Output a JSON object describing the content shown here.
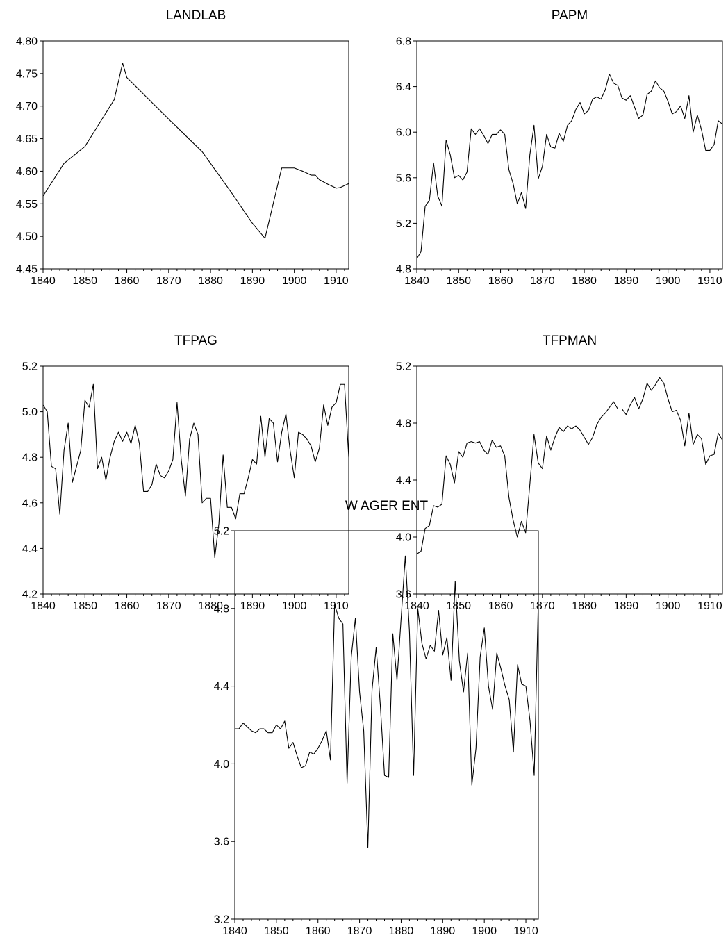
{
  "chart_data": [
    {
      "type": "line",
      "title": "LANDLAB",
      "xlim": [
        1840,
        1913
      ],
      "ylim": [
        4.45,
        4.8
      ],
      "x_ticks": [
        "1840",
        "1850",
        "1860",
        "1870",
        "1880",
        "1890",
        "1900",
        "1910"
      ],
      "y_ticks": [
        "4.45",
        "4.50",
        "4.55",
        "4.60",
        "4.65",
        "4.70",
        "4.75",
        "4.80"
      ],
      "grid": false,
      "series": [
        {
          "x": [
            1840,
            1845,
            1850,
            1857,
            1859,
            1860,
            1865,
            1870,
            1878,
            1885,
            1890,
            1893,
            1897,
            1899,
            1900,
            1902,
            1904,
            1905,
            1906,
            1908,
            1910,
            1911,
            1913
          ],
          "values": [
            4.562,
            4.612,
            4.638,
            4.71,
            4.766,
            4.744,
            4.712,
            4.68,
            4.63,
            4.567,
            4.52,
            4.497,
            4.605,
            4.605,
            4.605,
            4.6,
            4.594,
            4.594,
            4.587,
            4.58,
            4.574,
            4.575,
            4.581
          ]
        }
      ]
    },
    {
      "type": "line",
      "title": "PAPM",
      "xlim": [
        1840,
        1913
      ],
      "ylim": [
        4.8,
        6.8
      ],
      "x_ticks": [
        "1840",
        "1850",
        "1860",
        "1870",
        "1880",
        "1890",
        "1900",
        "1910"
      ],
      "y_ticks": [
        "4.8",
        "5.2",
        "5.6",
        "6.0",
        "6.4",
        "6.8"
      ],
      "grid": false,
      "series": [
        {
          "x_start": 1840,
          "x_step": 1,
          "values": [
            4.89,
            4.95,
            5.35,
            5.4,
            5.73,
            5.44,
            5.35,
            5.93,
            5.8,
            5.6,
            5.62,
            5.58,
            5.65,
            6.03,
            5.98,
            6.03,
            5.97,
            5.9,
            5.98,
            5.98,
            6.02,
            5.98,
            5.67,
            5.55,
            5.37,
            5.47,
            5.33,
            5.8,
            6.06,
            5.59,
            5.7,
            5.98,
            5.87,
            5.86,
            5.99,
            5.92,
            6.06,
            6.1,
            6.2,
            6.26,
            6.16,
            6.19,
            6.29,
            6.31,
            6.29,
            6.37,
            6.51,
            6.43,
            6.41,
            6.3,
            6.28,
            6.32,
            6.22,
            6.12,
            6.15,
            6.33,
            6.36,
            6.45,
            6.39,
            6.36,
            6.27,
            6.16,
            6.18,
            6.23,
            6.12,
            6.32,
            6.0,
            6.15,
            6.02,
            5.84,
            5.84,
            5.89,
            6.1,
            6.07
          ]
        }
      ]
    },
    {
      "type": "line",
      "title": "TFPAG",
      "xlim": [
        1840,
        1913
      ],
      "ylim": [
        4.2,
        5.2
      ],
      "x_ticks": [
        "1840",
        "1850",
        "1860",
        "1870",
        "1880",
        "1890",
        "1900",
        "1910"
      ],
      "y_ticks": [
        "4.2",
        "4.4",
        "4.6",
        "4.8",
        "5.0",
        "5.2"
      ],
      "grid": false,
      "series": [
        {
          "x_start": 1840,
          "x_step": 1,
          "values": [
            5.03,
            5.0,
            4.76,
            4.75,
            4.55,
            4.83,
            4.95,
            4.69,
            4.76,
            4.83,
            5.05,
            5.02,
            5.12,
            4.75,
            4.8,
            4.7,
            4.8,
            4.87,
            4.91,
            4.87,
            4.91,
            4.86,
            4.94,
            4.86,
            4.65,
            4.65,
            4.68,
            4.77,
            4.72,
            4.71,
            4.74,
            4.79,
            5.04,
            4.79,
            4.63,
            4.88,
            4.95,
            4.9,
            4.6,
            4.62,
            4.62,
            4.36,
            4.51,
            4.81,
            4.58,
            4.58,
            4.53,
            4.64,
            4.64,
            4.71,
            4.79,
            4.77,
            4.98,
            4.8,
            4.97,
            4.95,
            4.78,
            4.91,
            4.99,
            4.83,
            4.71,
            4.91,
            4.9,
            4.88,
            4.85,
            4.78,
            4.84,
            5.03,
            4.94,
            5.02,
            5.04,
            5.12,
            5.12,
            4.8
          ]
        }
      ]
    },
    {
      "type": "line",
      "title": "TFPMAN",
      "xlim": [
        1840,
        1913
      ],
      "ylim": [
        3.6,
        5.2
      ],
      "x_ticks": [
        "1840",
        "1850",
        "1860",
        "1870",
        "1880",
        "1890",
        "1900",
        "1910"
      ],
      "y_ticks": [
        "3.6",
        "4.0",
        "4.4",
        "4.8",
        "5.2"
      ],
      "grid": false,
      "series": [
        {
          "x_start": 1840,
          "x_step": 1,
          "values": [
            3.88,
            3.9,
            4.06,
            4.08,
            4.22,
            4.21,
            4.23,
            4.57,
            4.51,
            4.38,
            4.6,
            4.56,
            4.66,
            4.67,
            4.66,
            4.67,
            4.61,
            4.58,
            4.68,
            4.63,
            4.64,
            4.57,
            4.28,
            4.12,
            4.0,
            4.11,
            4.03,
            4.37,
            4.72,
            4.52,
            4.48,
            4.71,
            4.61,
            4.7,
            4.77,
            4.74,
            4.78,
            4.76,
            4.78,
            4.75,
            4.7,
            4.65,
            4.7,
            4.79,
            4.84,
            4.87,
            4.91,
            4.95,
            4.9,
            4.9,
            4.86,
            4.93,
            4.98,
            4.9,
            4.97,
            5.08,
            5.03,
            5.07,
            5.12,
            5.08,
            4.97,
            4.88,
            4.89,
            4.82,
            4.64,
            4.87,
            4.65,
            4.72,
            4.69,
            4.51,
            4.57,
            4.58,
            4.73,
            4.68
          ]
        }
      ]
    },
    {
      "type": "line",
      "title": "W AGER ENT",
      "xlim": [
        1840,
        1913
      ],
      "ylim": [
        3.2,
        5.2
      ],
      "x_ticks": [
        "1840",
        "1850",
        "1860",
        "1870",
        "1880",
        "1890",
        "1900",
        "1910"
      ],
      "y_ticks": [
        "3.2",
        "3.6",
        "4.0",
        "4.4",
        "4.8",
        "5.2"
      ],
      "grid": false,
      "series": [
        {
          "x_start": 1840,
          "x_step": 1,
          "values": [
            4.18,
            4.18,
            4.21,
            4.19,
            4.17,
            4.16,
            4.18,
            4.18,
            4.16,
            4.16,
            4.2,
            4.18,
            4.22,
            4.08,
            4.11,
            4.04,
            3.98,
            3.99,
            4.06,
            4.05,
            4.08,
            4.12,
            4.17,
            4.02,
            4.82,
            4.75,
            4.72,
            3.9,
            4.55,
            4.75,
            4.37,
            4.17,
            3.57,
            4.38,
            4.6,
            4.3,
            3.94,
            3.93,
            4.67,
            4.43,
            4.75,
            5.07,
            4.68,
            3.94,
            4.8,
            4.62,
            4.54,
            4.61,
            4.58,
            4.79,
            4.56,
            4.65,
            4.43,
            4.94,
            4.53,
            4.37,
            4.57,
            3.89,
            4.08,
            4.55,
            4.7,
            4.4,
            4.28,
            4.57,
            4.49,
            4.4,
            4.33,
            4.06,
            4.51,
            4.41,
            4.4,
            4.22,
            3.94,
            4.85
          ]
        }
      ]
    }
  ]
}
